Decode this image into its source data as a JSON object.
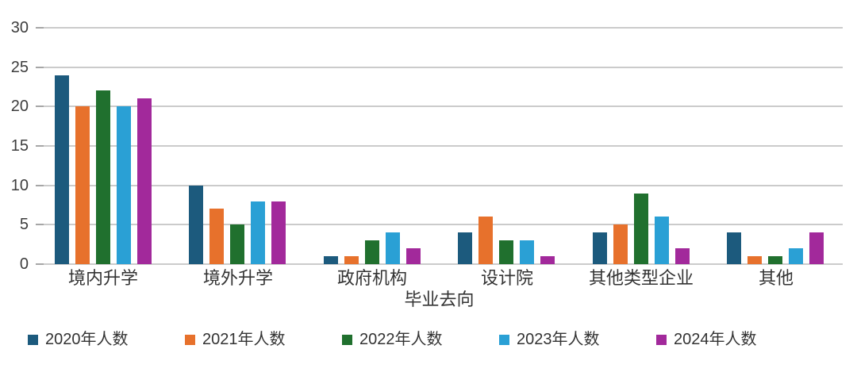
{
  "chart_data": {
    "type": "bar",
    "title": "",
    "xlabel": "毕业去向",
    "ylabel": "",
    "categories": [
      "境内升学",
      "境外升学",
      "政府机构",
      "设计院",
      "其他类型企业",
      "其他"
    ],
    "series": [
      {
        "name": "2020年人数",
        "color": "#1c5a7d",
        "values": [
          24,
          10,
          1,
          4,
          4,
          4
        ]
      },
      {
        "name": "2021年人数",
        "color": "#e7712c",
        "values": [
          20,
          7,
          1,
          6,
          5,
          1
        ]
      },
      {
        "name": "2022年人数",
        "color": "#20702e",
        "values": [
          22,
          5,
          3,
          3,
          9,
          1
        ]
      },
      {
        "name": "2023年人数",
        "color": "#2aa0d5",
        "values": [
          20,
          8,
          4,
          3,
          6,
          2
        ]
      },
      {
        "name": "2024年人数",
        "color": "#a2299b",
        "values": [
          21,
          8,
          2,
          1,
          2,
          4
        ]
      }
    ],
    "ylim": [
      0,
      30
    ],
    "yticks": [
      0,
      5,
      10,
      15,
      20,
      25,
      30
    ],
    "grid": true,
    "legend_position": "bottom",
    "colors": {
      "gridline": "#cbcbcb",
      "tick": "#a6a6a6",
      "text": "#333333"
    }
  }
}
